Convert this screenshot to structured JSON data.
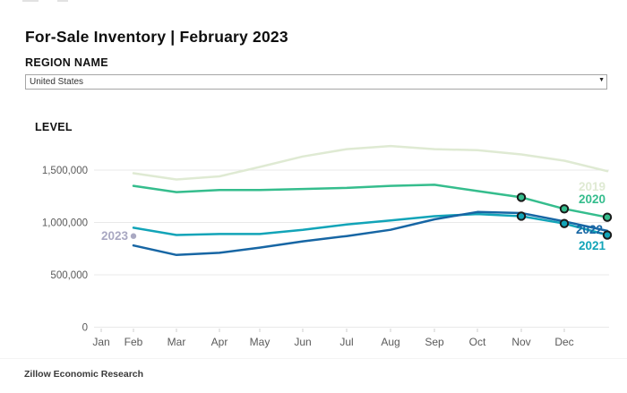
{
  "page": {
    "title": "For-Sale Inventory | February 2023",
    "footer": "Zillow Economic Research"
  },
  "region_filter": {
    "label": "REGION NAME",
    "selected": "United States",
    "options": [
      "United States"
    ]
  },
  "chart_data": {
    "type": "line",
    "title": "For-Sale Inventory | February 2023",
    "ylabel": "LEVEL",
    "x": [
      "Jan",
      "Feb",
      "Mar",
      "Apr",
      "May",
      "Jun",
      "Jul",
      "Aug",
      "Sep",
      "Oct",
      "Nov",
      "Dec"
    ],
    "y_ticks": [
      0,
      500000,
      1000000,
      1500000
    ],
    "ylim": [
      0,
      1840000
    ],
    "grid": true,
    "legend_position": "series labels at line ends (right edge); 2023 labeled beside its point",
    "marker_stroke": "#1a1a1a",
    "series": [
      {
        "name": "2019",
        "color": "#dfead3",
        "values": [
          1470000,
          1410000,
          1440000,
          1530000,
          1630000,
          1700000,
          1730000,
          1700000,
          1690000,
          1650000,
          1590000,
          1490000
        ]
      },
      {
        "name": "2020",
        "color": "#35bd8d",
        "end_markers": 3,
        "values": [
          1350000,
          1290000,
          1310000,
          1310000,
          1320000,
          1330000,
          1350000,
          1360000,
          1300000,
          1240000,
          1130000,
          1050000
        ]
      },
      {
        "name": "2021",
        "color": "#12a4b8",
        "end_markers": 3,
        "values": [
          950000,
          880000,
          890000,
          890000,
          930000,
          980000,
          1020000,
          1060000,
          1080000,
          1060000,
          990000,
          880000
        ]
      },
      {
        "name": "2022",
        "color": "#1766a4",
        "values": [
          780000,
          690000,
          710000,
          760000,
          820000,
          870000,
          930000,
          1030000,
          1100000,
          1090000,
          1010000,
          920000
        ]
      },
      {
        "name": "2023",
        "color": "#a9a8c2",
        "values": [
          870000,
          null,
          null,
          null,
          null,
          null,
          null,
          null,
          null,
          null,
          null,
          null
        ]
      }
    ]
  }
}
